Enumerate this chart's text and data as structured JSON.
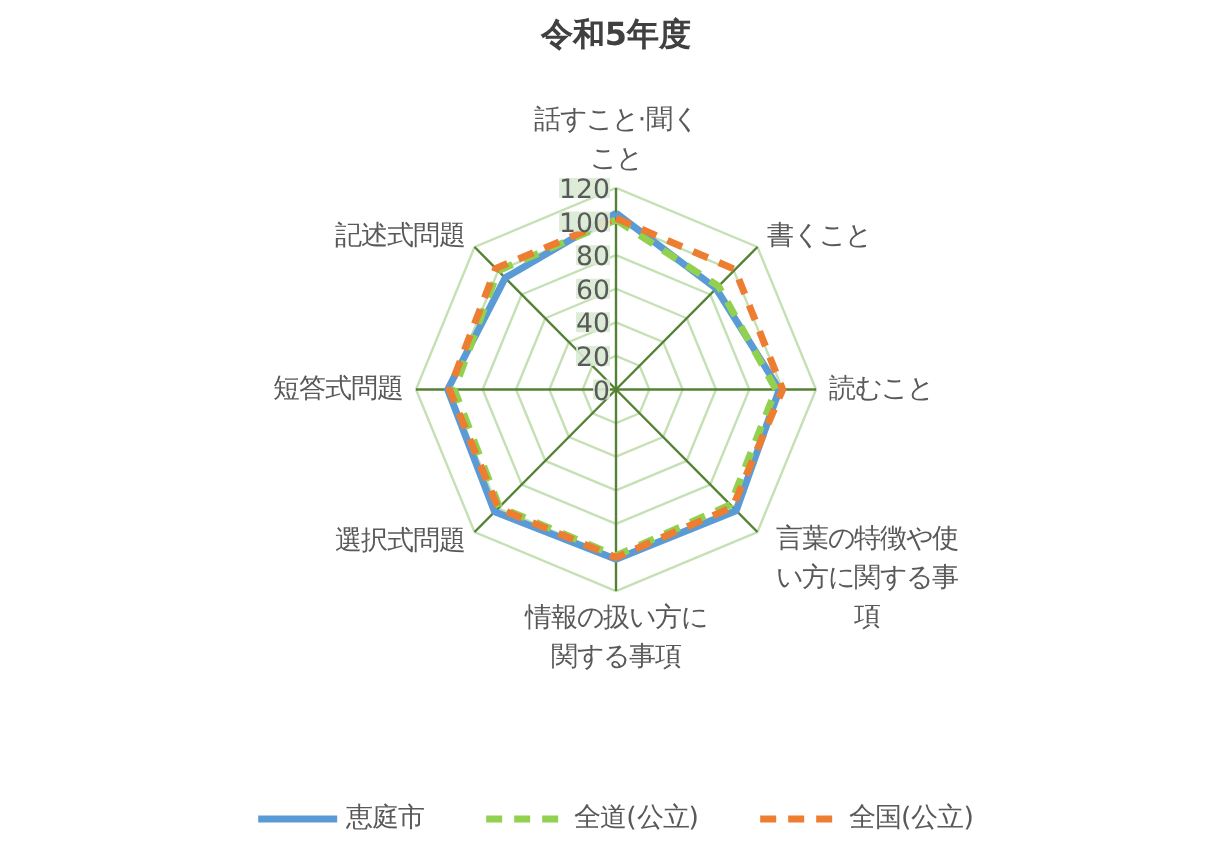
{
  "chart_data": {
    "type": "radar",
    "title": "令和5年度",
    "categories": [
      "話すこと·聞くこと",
      "書くこと",
      "読むこと",
      "言葉の特徴や使い方に関する事項",
      "情報の扱い方に関する事項",
      "選択式問題",
      "短答式問題",
      "記述式問題"
    ],
    "series": [
      {
        "name": "恵庭市",
        "color": "#5b9bd5",
        "line_style": "solid",
        "values": [
          105,
          85,
          98,
          102,
          101,
          103,
          101,
          94
        ]
      },
      {
        "name": "全道(公立)",
        "color": "#92d050",
        "line_style": "dashed",
        "values": [
          101,
          87,
          96,
          97,
          99,
          99,
          97,
          100
        ]
      },
      {
        "name": "全国(公立)",
        "color": "#ed7d31",
        "line_style": "dashed",
        "values": [
          102,
          101,
          100,
          99,
          100,
          100,
          100,
          102
        ]
      }
    ],
    "ylim": [
      0,
      120
    ],
    "yticks": [
      0,
      20,
      40,
      60,
      80,
      100,
      120
    ],
    "grid": true,
    "legend": "bottom",
    "marker": "none"
  }
}
